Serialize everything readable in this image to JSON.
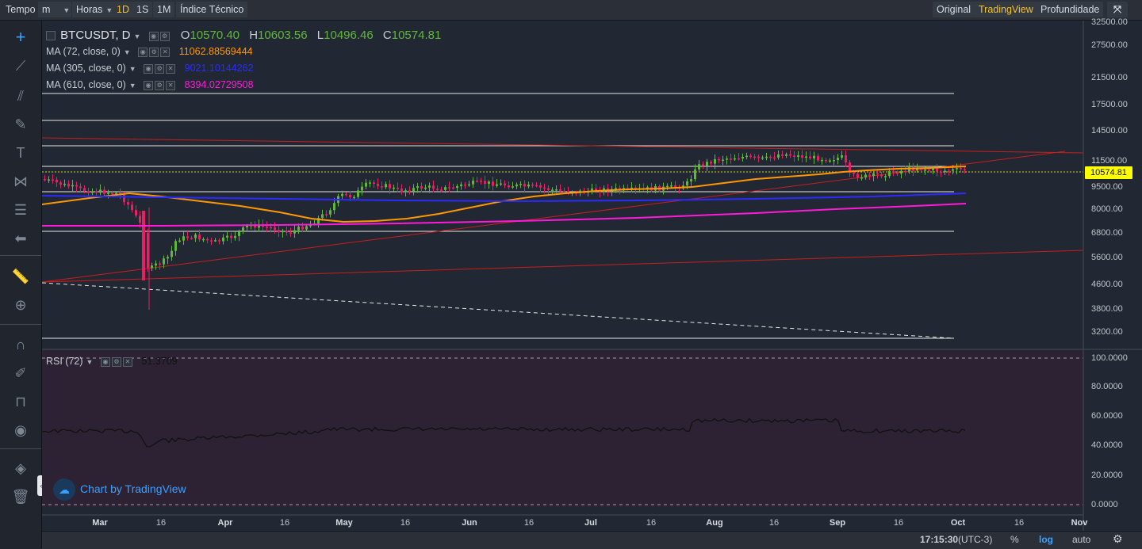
{
  "toolbar": {
    "time_label": "Tempo",
    "interval_select": "m",
    "hours_select": "Horas",
    "intervals": [
      "1D",
      "1S",
      "1M"
    ],
    "active_interval": "1D",
    "indicators_label": "Índice Técnico",
    "view_original": "Original",
    "view_tradingview": "TradingView",
    "view_depth": "Profundidade"
  },
  "legend": {
    "symbol": "BTCUSDT, D",
    "open_key": "O",
    "open": "10570.40",
    "high_key": "H",
    "high": "10603.56",
    "low_key": "L",
    "low": "10496.46",
    "close_key": "C",
    "close": "10574.81",
    "ma": [
      {
        "label": "MA (72, close, 0)",
        "value": "11062.88569444",
        "color": "#ff9800"
      },
      {
        "label": "MA (305, close, 0)",
        "value": "9021.10144262",
        "color": "#2b2bff"
      },
      {
        "label": "MA (610, close, 0)",
        "value": "8394.02729508",
        "color": "#ff1ad9"
      }
    ]
  },
  "rsi": {
    "label": "RSI (72)",
    "value": "51.3709"
  },
  "price_axis": {
    "labels": [
      "32500.00",
      "27500.00",
      "21500.00",
      "17500.00",
      "14500.00",
      "11500.00",
      "9500.00",
      "8000.00",
      "6800.00",
      "5600.00",
      "4600.00",
      "3800.00",
      "3200.00"
    ],
    "current": "10574.81",
    "current_color": "#ffff00"
  },
  "rsi_axis": {
    "labels": [
      "100.0000",
      "80.0000",
      "60.0000",
      "40.0000",
      "20.0000",
      "0.0000"
    ]
  },
  "time_axis": {
    "labels": [
      {
        "t": "Mar",
        "month": true
      },
      {
        "t": "16",
        "month": false
      },
      {
        "t": "Apr",
        "month": true
      },
      {
        "t": "16",
        "month": false
      },
      {
        "t": "May",
        "month": true
      },
      {
        "t": "16",
        "month": false
      },
      {
        "t": "Jun",
        "month": true
      },
      {
        "t": "16",
        "month": false
      },
      {
        "t": "Jul",
        "month": true
      },
      {
        "t": "16",
        "month": false
      },
      {
        "t": "Aug",
        "month": true
      },
      {
        "t": "16",
        "month": false
      },
      {
        "t": "Sep",
        "month": true
      },
      {
        "t": "16",
        "month": false
      },
      {
        "t": "Oct",
        "month": true
      },
      {
        "t": "16",
        "month": false
      },
      {
        "t": "Nov",
        "month": true
      }
    ]
  },
  "bottom": {
    "time": "17:15:30",
    "tz": "(UTC-3)",
    "percent": "%",
    "log": "log",
    "auto": "auto"
  },
  "watermark": "Chart by TradingView",
  "colors": {
    "up": "#5fb83a",
    "down": "#e91e63",
    "ma72": "#ff9800",
    "ma305": "#2b2bff",
    "ma610": "#ff1ad9",
    "trend": "#c81e1e",
    "accent": "#f6c21b",
    "log_active": "#3ba0ff"
  },
  "icons": [
    "crosshair-icon",
    "trendline-icon",
    "pitchfork-icon",
    "brush-icon",
    "text-icon",
    "pattern-icon",
    "fib-icon",
    "back-arrow-icon",
    "ruler-icon",
    "zoom-icon",
    "magnet-icon",
    "lock-drawing-icon",
    "unlock-icon",
    "eye-icon",
    "layers-icon",
    "trash-icon",
    "fullscreen-icon",
    "settings-icon"
  ]
}
